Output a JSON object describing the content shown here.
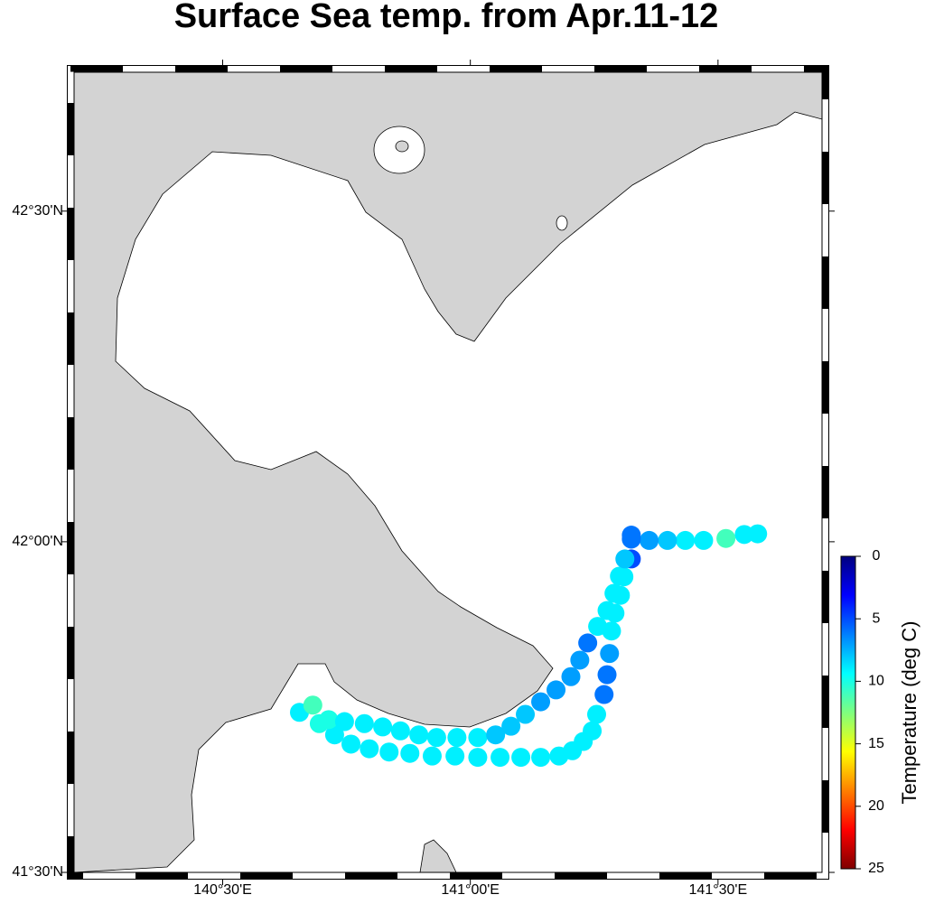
{
  "chart_data": {
    "type": "scatter",
    "title": "Surface Sea temp. from Apr.11-12",
    "x": [
      141.58,
      141.553,
      141.516,
      141.471,
      141.434,
      141.398,
      141.361,
      141.325,
      141.325,
      141.31,
      141.303,
      141.292,
      141.285,
      141.281,
      141.276,
      141.27,
      141.255,
      141.246,
      141.228,
      141.206,
      141.179,
      141.142,
      141.102,
      141.06,
      141.015,
      140.969,
      140.923,
      140.878,
      140.836,
      140.796,
      140.759,
      140.726,
      140.695,
      140.655,
      140.682,
      140.714,
      140.746,
      140.786,
      140.823,
      140.859,
      140.896,
      140.932,
      140.973,
      141.015,
      141.051,
      141.082,
      141.111,
      141.142,
      141.173,
      141.203,
      141.221,
      141.237,
      141.257,
      141.276,
      141.29,
      141.301,
      141.312,
      141.325
    ],
    "y": [
      42.012,
      42.011,
      42.005,
      42.002,
      42.002,
      42.002,
      42.002,
      42.004,
      41.974,
      41.947,
      41.919,
      41.892,
      41.865,
      41.831,
      41.799,
      41.769,
      41.739,
      41.714,
      41.698,
      41.684,
      41.676,
      41.674,
      41.674,
      41.674,
      41.674,
      41.676,
      41.676,
      41.68,
      41.682,
      41.687,
      41.694,
      41.708,
      41.725,
      41.742,
      41.753,
      41.731,
      41.728,
      41.725,
      41.72,
      41.714,
      41.708,
      41.704,
      41.704,
      41.704,
      41.708,
      41.721,
      41.739,
      41.758,
      41.776,
      41.796,
      41.821,
      41.847,
      41.872,
      41.896,
      41.922,
      41.948,
      41.974,
      42.01
    ],
    "values": [
      9,
      9,
      11,
      9,
      9,
      8,
      7,
      6,
      5,
      9,
      9,
      9,
      9,
      7,
      6,
      6,
      9,
      9,
      9,
      9,
      9,
      9,
      9,
      9,
      9,
      9,
      9,
      9,
      9,
      9,
      9,
      9,
      10,
      9,
      11,
      10,
      9,
      9,
      9,
      9,
      9,
      9,
      9,
      9,
      8,
      8,
      8,
      7,
      7,
      7,
      7,
      6,
      9,
      9,
      9,
      9,
      8,
      6
    ],
    "xlim": [
      140.2,
      141.71
    ],
    "ylim": [
      41.5,
      42.71
    ],
    "xticks": [
      {
        "value": 140.5,
        "label": "140°30'E"
      },
      {
        "value": 141,
        "label": "141°00'E"
      },
      {
        "value": 141.5,
        "label": "141°30'E"
      }
    ],
    "yticks": [
      {
        "value": 41.5,
        "label": "41°30'N"
      },
      {
        "value": 42,
        "label": "42°00'N"
      },
      {
        "value": 42.5,
        "label": "42°30'N"
      }
    ],
    "colorbar": {
      "label": "Temperature (deg C)",
      "lim": [
        0,
        25
      ],
      "ticks": [
        0,
        5,
        10,
        15,
        20,
        25
      ]
    },
    "colormap": [
      "#00007f",
      "#0000ff",
      "#007fff",
      "#00ffff",
      "#7fff7f",
      "#ffff00",
      "#ff7f00",
      "#ff0000",
      "#7f0000"
    ]
  }
}
